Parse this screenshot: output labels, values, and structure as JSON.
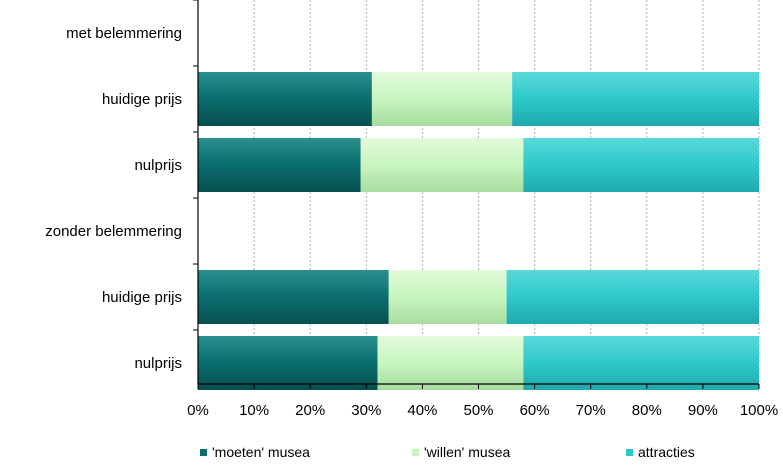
{
  "chart_data": {
    "type": "bar",
    "orientation": "horizontal",
    "stacked": true,
    "percent_stacked": true,
    "categories": [
      "met belemmering",
      "huidige prijs",
      "nulprijs",
      "zonder belemmering",
      "huidige prijs",
      "nulprijs"
    ],
    "series": [
      {
        "name": "'moeten' musea",
        "values": [
          null,
          31,
          29,
          null,
          34,
          32
        ]
      },
      {
        "name": "'willen' musea",
        "values": [
          null,
          25,
          29,
          null,
          21,
          26
        ]
      },
      {
        "name": "attracties",
        "values": [
          null,
          44,
          42,
          null,
          45,
          42
        ]
      }
    ],
    "xlim": [
      0,
      100
    ],
    "x_ticks": [
      "0%",
      "10%",
      "20%",
      "30%",
      "40%",
      "50%",
      "60%",
      "70%",
      "80%",
      "90%",
      "100%"
    ],
    "grid": "vertical-dashed",
    "legend": "bottom",
    "colors": [
      "#0b6e6e",
      "#c8f5c0",
      "#2ec9cc"
    ]
  }
}
